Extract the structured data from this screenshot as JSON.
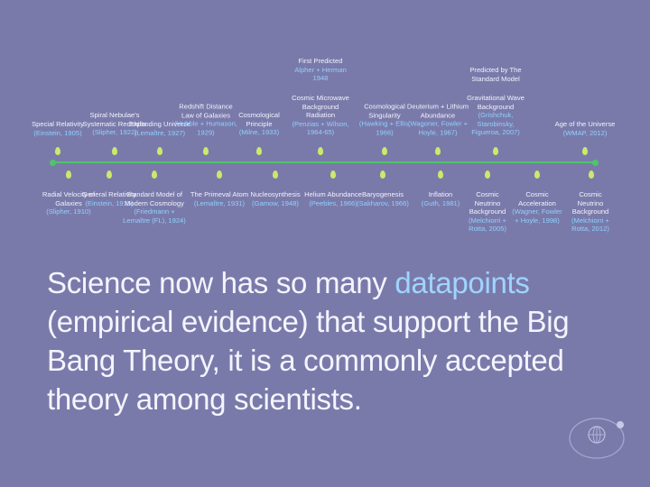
{
  "timeline": {
    "events_above": [
      {
        "name": "Special Relativity",
        "cite": "(Einstein, 1905)"
      },
      {
        "name": "Spiral Nebulae's Systematic Redshifts",
        "cite": "(Slipher, 1922)"
      },
      {
        "name": "Expanding Universe",
        "cite": "(Lemaître, 1927)"
      },
      {
        "name": "Redshift Distance Law of Galaxies",
        "cite": "(Hubble + Humason, 1929)"
      },
      {
        "name": "Cosmological Principle",
        "cite": "(Milne, 1933)"
      },
      {
        "name": "Cosmic Microwave Background Radiation",
        "cite": "(Penzias + Wilson, 1964-65)"
      },
      {
        "name": "Cosmological Singularity",
        "cite": "(Hawking + Ellis, 1966)"
      },
      {
        "name": "Deuterium + Lithium Abundance",
        "cite": "(Wagoner, Fowler + Hoyle, 1967)"
      },
      {
        "name": "Gravitational Wave Background",
        "cite": "(Grishchuk, Starobinsky, Figueroa, 2007)"
      },
      {
        "name": "Age of the Universe",
        "cite": "(WMAP, 2012)"
      }
    ],
    "predictions": [
      {
        "label": "First Predicted",
        "cite": "Alpher + Herman",
        "year": "1948"
      },
      {
        "label": "Predicted by The Standard Model",
        "cite": "",
        "year": ""
      }
    ],
    "events_below": [
      {
        "name": "Radial Velocity of Galaxies",
        "cite": "(Slipher, 1910)"
      },
      {
        "name": "General Relativity",
        "cite": "(Einstein, 1915)"
      },
      {
        "name": "Standard Model of Modern Cosmology",
        "cite": "(Friedmann + Lemaître (FL), 1924)"
      },
      {
        "name": "The Primeval Atom",
        "cite": "(Lemaître, 1931)"
      },
      {
        "name": "Nucleosynthesis",
        "cite": "(Gamow, 1948)"
      },
      {
        "name": "Helium Abundance",
        "cite": "(Peebles, 1966)"
      },
      {
        "name": "Baryogenesis",
        "cite": "(Sakharov, 1966)"
      },
      {
        "name": "Inflation",
        "cite": "(Guth, 1981)"
      },
      {
        "name": "Cosmic Neutrino Background",
        "cite": "(Melchiorri + Rotta, 2005)"
      },
      {
        "name": "Cosmic Acceleration",
        "cite": "(Wagner, Fowler + Hoyle, 1998)"
      },
      {
        "name": "Cosmic Neutrino Background",
        "cite": "(Melchiorri + Rotta, 2012)"
      }
    ]
  },
  "statement": {
    "before": "Science now has so many ",
    "highlight": "datapoints",
    "after": " (empirical evidence) that support the Big Bang Theory, it is a commonly accepted theory among scientists."
  },
  "colors": {
    "background": "#7a7aaa",
    "axis": "#4fc46a",
    "marker": "#cfe86a",
    "highlight": "#9fd4ff"
  }
}
